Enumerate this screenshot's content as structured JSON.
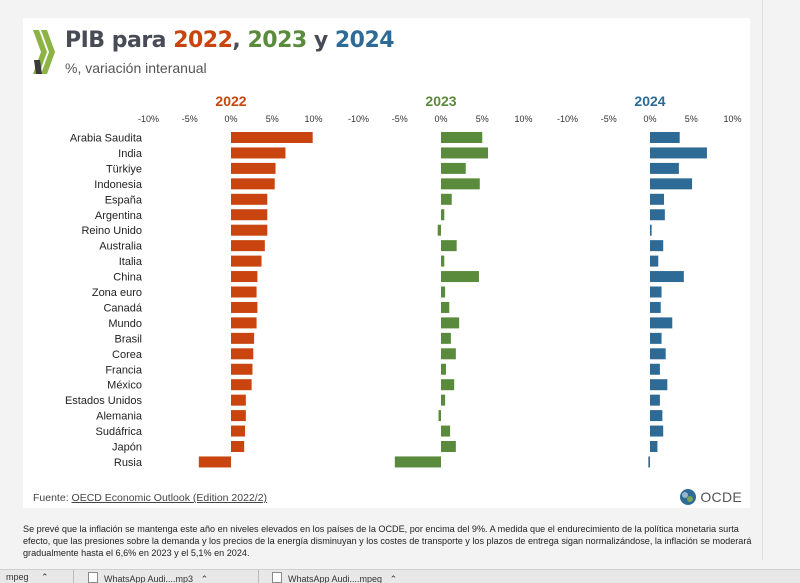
{
  "header": {
    "title_prefix": "PIB para ",
    "year1": "2022",
    "sep1": ", ",
    "year2": "2023",
    "sep2": " y ",
    "year3": "2024",
    "subtitle": "%, variación interanual"
  },
  "colors": {
    "y2022": "#c9440f",
    "y2023": "#5a8a3c",
    "y2024": "#2e6a96",
    "logo_green": "#8db346",
    "logo_dark": "#3a3a3a"
  },
  "chart_data": {
    "type": "bar",
    "orientation": "horizontal",
    "panels": [
      "2022",
      "2023",
      "2024"
    ],
    "xlim": [
      -10,
      10
    ],
    "ticks": [
      "-10%",
      "-5%",
      "0%",
      "5%",
      "10%"
    ],
    "categories": [
      "Arabia Saudita",
      "India",
      "Türkiye",
      "Indonesia",
      "España",
      "Argentina",
      "Reino Unido",
      "Australia",
      "Italia",
      "China",
      "Zona euro",
      "Canadá",
      "Mundo",
      "Brasil",
      "Corea",
      "Francia",
      "México",
      "Estados Unidos",
      "Alemania",
      "Sudáfrica",
      "Japón",
      "Rusia"
    ],
    "series": [
      {
        "name": "2022",
        "values": [
          9.9,
          6.6,
          5.4,
          5.3,
          4.4,
          4.4,
          4.4,
          4.1,
          3.7,
          3.2,
          3.1,
          3.2,
          3.1,
          2.8,
          2.7,
          2.6,
          2.5,
          1.8,
          1.8,
          1.7,
          1.6,
          -3.9
        ]
      },
      {
        "name": "2023",
        "values": [
          5.0,
          5.7,
          3.0,
          4.7,
          1.3,
          0.4,
          -0.4,
          1.9,
          0.4,
          4.6,
          0.5,
          1.0,
          2.2,
          1.2,
          1.8,
          0.6,
          1.6,
          0.5,
          -0.3,
          1.1,
          1.8,
          -5.6
        ]
      },
      {
        "name": "2024",
        "values": [
          3.6,
          6.9,
          3.5,
          5.1,
          1.7,
          1.8,
          0.2,
          1.6,
          1.0,
          4.1,
          1.4,
          1.3,
          2.7,
          1.4,
          1.9,
          1.2,
          2.1,
          1.2,
          1.5,
          1.6,
          0.9,
          -0.2
        ]
      }
    ]
  },
  "source": {
    "label": "Fuente: ",
    "link": "OECD Economic Outlook (Edition 2022/2)"
  },
  "logo_text": "OCDE",
  "footnote": "Se prevé que la inflación se mantenga este año en niveles elevados en los países de la OCDE, por encima del 9%. A medida que el endurecimiento de la política monetaria surta efecto, que las presiones sobre la demanda y los precios de la energía disminuyan y los costes de transporte y los plazos de entrega sigan normalizándose, la inflación se moderará gradualmente hasta el 6,6% en 2023 y el 5,1% en 2024.",
  "taskbar": {
    "item1": "mpeg",
    "item2": "WhatsApp Audi....mp3",
    "item3": "WhatsApp Audi....mpeg"
  }
}
